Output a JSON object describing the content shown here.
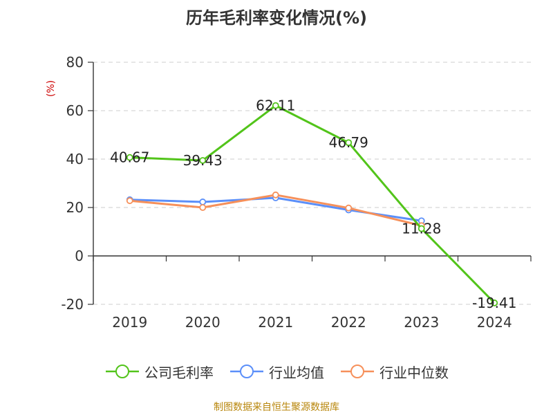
{
  "footer": "制图数据来自恒生聚源数据库",
  "chart_data": {
    "type": "line",
    "title": "历年毛利率变化情况(%)",
    "ylabel": "(%)",
    "xlabel": "",
    "categories": [
      "2019",
      "2020",
      "2021",
      "2022",
      "2023",
      "2024"
    ],
    "ylim": [
      -20,
      80
    ],
    "yticks": [
      -20,
      0,
      20,
      40,
      60,
      80
    ],
    "grid": true,
    "legend_position": "bottom",
    "series": [
      {
        "name": "公司毛利率",
        "color": "#52c41a",
        "values": [
          40.67,
          39.43,
          62.11,
          46.79,
          11.28,
          -19.41
        ],
        "labels": [
          "40.67",
          "39.43",
          "62.11",
          "46.79",
          "11.28",
          "-19.41"
        ]
      },
      {
        "name": "行业均值",
        "color": "#5b8ff9",
        "values": [
          23.2,
          22.3,
          24.0,
          19.0,
          14.5,
          null
        ]
      },
      {
        "name": "行业中位数",
        "color": "#f6905a",
        "values": [
          22.8,
          20.0,
          25.2,
          19.8,
          12.5,
          null
        ]
      }
    ]
  }
}
